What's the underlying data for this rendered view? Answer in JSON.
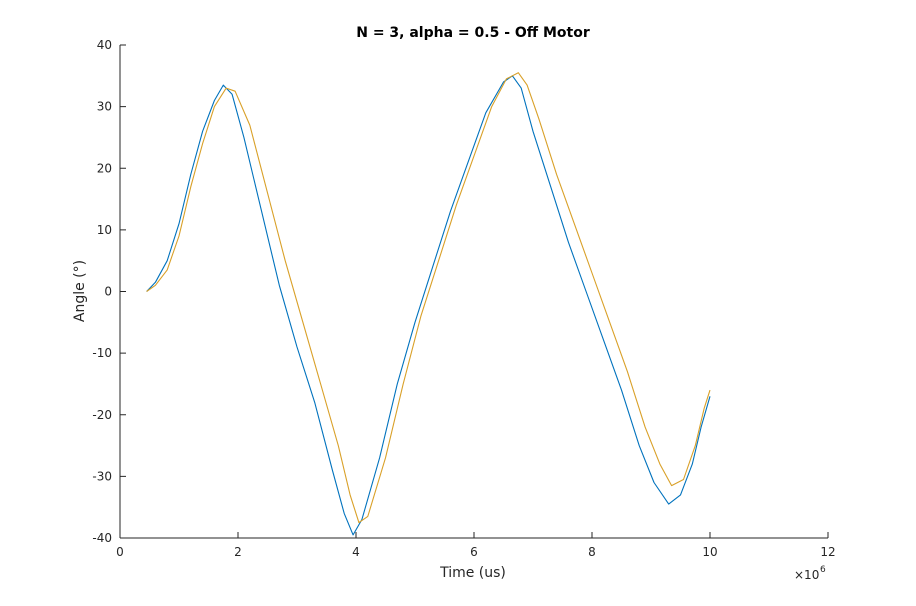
{
  "chart_data": {
    "type": "line",
    "title": "N = 3, alpha = 0.5 - Off Motor",
    "xlabel": "Time (us)",
    "ylabel": "Angle (°)",
    "x_exponent_label": "×10",
    "x_exponent_power": "6",
    "xlim": [
      0,
      12
    ],
    "ylim": [
      -40,
      40
    ],
    "x_ticks": [
      0,
      2,
      4,
      6,
      8,
      10,
      12
    ],
    "y_ticks": [
      -40,
      -30,
      -20,
      -10,
      0,
      10,
      20,
      30,
      40
    ],
    "grid": false,
    "series": [
      {
        "color": "#0072BD",
        "x": [
          0.45,
          0.6,
          0.8,
          1.0,
          1.2,
          1.4,
          1.6,
          1.75,
          1.9,
          2.1,
          2.4,
          2.7,
          3.0,
          3.3,
          3.6,
          3.8,
          3.95,
          4.1,
          4.4,
          4.7,
          5.0,
          5.3,
          5.6,
          5.9,
          6.2,
          6.5,
          6.65,
          6.8,
          7.0,
          7.3,
          7.6,
          7.9,
          8.2,
          8.5,
          8.8,
          9.05,
          9.3,
          9.5,
          9.7,
          9.85,
          10.0
        ],
        "values": [
          0,
          1.5,
          5,
          11,
          19,
          26,
          31,
          33.5,
          32,
          25,
          13,
          1,
          -9,
          -18,
          -29,
          -36,
          -39.5,
          -37,
          -27,
          -15,
          -5,
          4,
          13,
          21,
          29,
          34,
          35,
          33,
          26,
          17,
          8,
          0,
          -8,
          -16,
          -25,
          -31,
          -34.5,
          -33,
          -28,
          -22,
          -17
        ]
      },
      {
        "color": "#D9A028",
        "x": [
          0.45,
          0.6,
          0.8,
          1.0,
          1.2,
          1.4,
          1.6,
          1.8,
          1.95,
          2.2,
          2.5,
          2.8,
          3.1,
          3.4,
          3.7,
          3.9,
          4.05,
          4.2,
          4.5,
          4.8,
          5.1,
          5.4,
          5.7,
          6.0,
          6.3,
          6.55,
          6.75,
          6.9,
          7.1,
          7.4,
          7.7,
          8.0,
          8.3,
          8.6,
          8.9,
          9.15,
          9.35,
          9.55,
          9.75,
          9.9,
          10.0
        ],
        "values": [
          0,
          1,
          3.5,
          9,
          17,
          24,
          30,
          33,
          32.5,
          27,
          16,
          5,
          -5,
          -15,
          -25,
          -33,
          -37.5,
          -36.5,
          -27,
          -15,
          -4,
          5,
          14,
          22,
          30,
          34.5,
          35.5,
          33.5,
          28,
          19,
          11,
          3,
          -5,
          -13,
          -22,
          -28,
          -31.5,
          -30.5,
          -25,
          -19,
          -16
        ]
      }
    ]
  }
}
